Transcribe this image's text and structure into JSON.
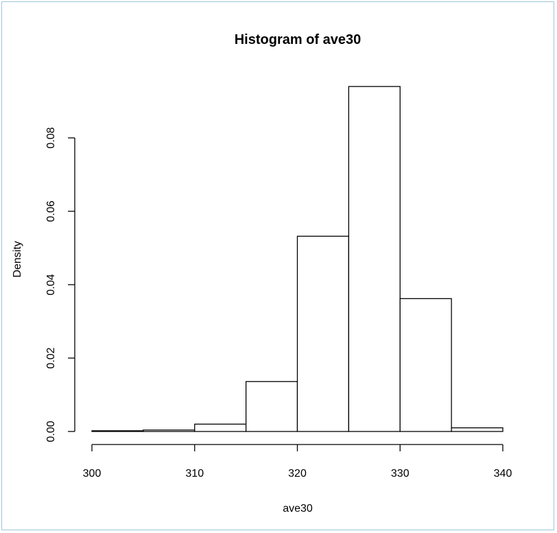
{
  "chart_data": {
    "type": "bar",
    "title": "Histogram of ave30",
    "xlabel": "ave30",
    "ylabel": "Density",
    "xlim": [
      300,
      340
    ],
    "ylim": [
      0,
      0.08
    ],
    "x_ticks": [
      300,
      310,
      320,
      330,
      340
    ],
    "x_tick_labels": [
      "300",
      "310",
      "320",
      "330",
      "340"
    ],
    "y_ticks": [
      0.0,
      0.02,
      0.04,
      0.06,
      0.08
    ],
    "y_tick_labels": [
      "0.00",
      "0.02",
      "0.04",
      "0.06",
      "0.08"
    ],
    "bins": [
      {
        "start": 300,
        "end": 305,
        "density": 0.0002
      },
      {
        "start": 305,
        "end": 310,
        "density": 0.0004
      },
      {
        "start": 310,
        "end": 315,
        "density": 0.002
      },
      {
        "start": 315,
        "end": 320,
        "density": 0.0136
      },
      {
        "start": 320,
        "end": 325,
        "density": 0.0532
      },
      {
        "start": 325,
        "end": 330,
        "density": 0.094
      },
      {
        "start": 330,
        "end": 335,
        "density": 0.0362
      },
      {
        "start": 335,
        "end": 340,
        "density": 0.001
      }
    ],
    "grid": false,
    "legend": "none"
  }
}
